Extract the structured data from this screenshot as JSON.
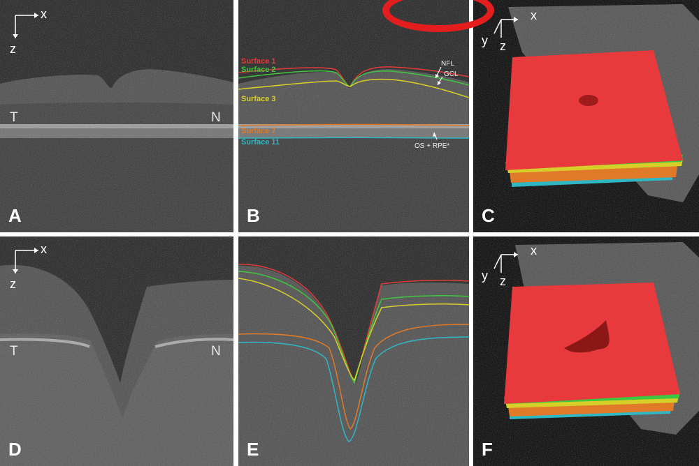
{
  "panels": {
    "A": {
      "letter": "A",
      "axis_x": "x",
      "axis_z": "z",
      "left_label": "T",
      "right_label": "N"
    },
    "B": {
      "letter": "B",
      "surfaces": [
        {
          "label": "Surface 1",
          "color": "#e33b3b"
        },
        {
          "label": "Surface 2",
          "color": "#3fc63f"
        },
        {
          "label": "Surface 3",
          "color": "#d6cf2a"
        },
        {
          "label": "Surface 7",
          "color": "#e07a28"
        },
        {
          "label": "Surface 11",
          "color": "#2fb7c4"
        }
      ],
      "annotations": [
        "NFL",
        "GCL",
        "OS + RPE*"
      ]
    },
    "C": {
      "letter": "C",
      "axis_x": "x",
      "axis_y": "y",
      "axis_z": "z"
    },
    "D": {
      "letter": "D",
      "axis_x": "x",
      "axis_z": "z",
      "left_label": "T",
      "right_label": "N"
    },
    "E": {
      "letter": "E"
    },
    "F": {
      "letter": "F",
      "axis_x": "x",
      "axis_y": "y",
      "axis_z": "z"
    }
  },
  "colors": {
    "surface_red": "#e33b3b",
    "surface_green": "#3fc63f",
    "surface_yellow": "#d6cf2a",
    "surface_orange": "#e07a28",
    "surface_cyan": "#2fb7c4",
    "marker_red": "#e41e1e"
  }
}
